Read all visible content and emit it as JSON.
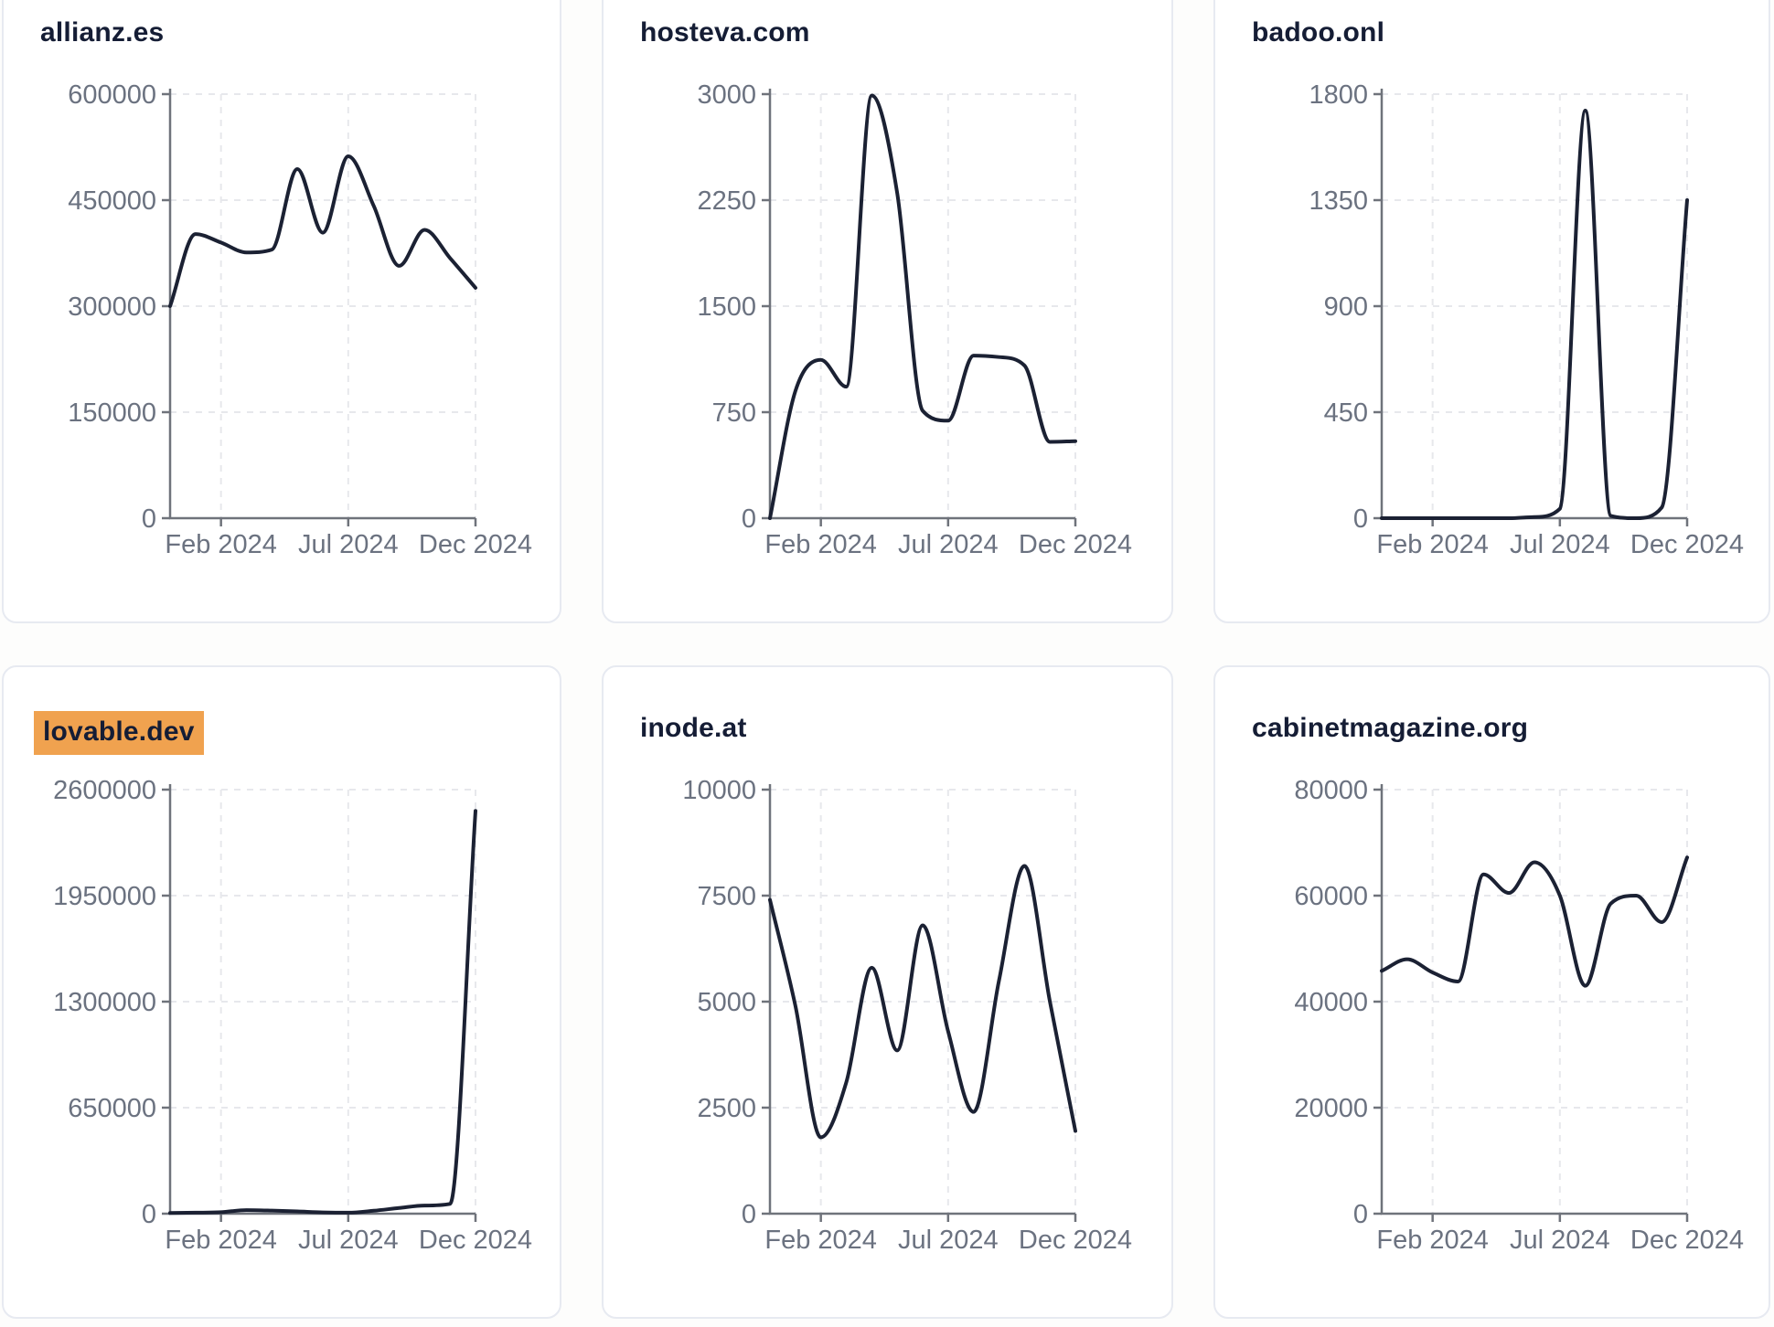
{
  "page": {
    "background": "#fdfdfc",
    "card_background": "#ffffff",
    "card_border_color": "#e7eaf1"
  },
  "styles": {
    "line_color": "#1b2133",
    "axis_color": "#6f737b",
    "grid_color": "#e7e8ec",
    "tick_label_color": "#6b7280",
    "title_color": "#151d35",
    "highlight_color": "#f0a24f"
  },
  "chart_data": [
    {
      "type": "line",
      "title": "allianz.es",
      "highlighted": false,
      "x": [
        "Dec 2023",
        "Jan 2024",
        "Feb 2024",
        "Mar 2024",
        "Apr 2024",
        "May 2024",
        "Jun 2024",
        "Jul 2024",
        "Aug 2024",
        "Sep 2024",
        "Oct 2024",
        "Nov 2024",
        "Dec 2024"
      ],
      "values": [
        300000,
        402000,
        390000,
        376000,
        380000,
        494000,
        404000,
        512000,
        442000,
        357000,
        408000,
        368000,
        326000
      ],
      "ylim": [
        0,
        600000
      ],
      "yticks": [
        0,
        150000,
        300000,
        450000,
        600000
      ],
      "xticks": [
        {
          "index": 2,
          "label": "Feb 2024"
        },
        {
          "index": 7,
          "label": "Jul 2024"
        },
        {
          "index": 12,
          "label": "Dec 2024"
        }
      ],
      "xlabel": "",
      "ylabel": "",
      "grid": true,
      "legend": false
    },
    {
      "type": "line",
      "title": "hosteva.com",
      "highlighted": false,
      "x": [
        "Dec 2023",
        "Jan 2024",
        "Feb 2024",
        "Mar 2024",
        "Apr 2024",
        "May 2024",
        "Jun 2024",
        "Jul 2024",
        "Aug 2024",
        "Sep 2024",
        "Oct 2024",
        "Nov 2024",
        "Dec 2024"
      ],
      "values": [
        0,
        900,
        1120,
        930,
        2990,
        2300,
        760,
        690,
        1150,
        1140,
        1080,
        540,
        545
      ],
      "ylim": [
        0,
        3000
      ],
      "yticks": [
        0,
        750,
        1500,
        2250,
        3000
      ],
      "xticks": [
        {
          "index": 2,
          "label": "Feb 2024"
        },
        {
          "index": 7,
          "label": "Jul 2024"
        },
        {
          "index": 12,
          "label": "Dec 2024"
        }
      ],
      "xlabel": "",
      "ylabel": "",
      "grid": true,
      "legend": false
    },
    {
      "type": "line",
      "title": "badoo.onl",
      "highlighted": false,
      "x": [
        "Dec 2023",
        "Jan 2024",
        "Feb 2024",
        "Mar 2024",
        "Apr 2024",
        "May 2024",
        "Jun 2024",
        "Jul 2024",
        "Aug 2024",
        "Sep 2024",
        "Oct 2024",
        "Nov 2024",
        "Dec 2024"
      ],
      "values": [
        0,
        0,
        0,
        0,
        0,
        0,
        5,
        40,
        1730,
        10,
        0,
        45,
        1350
      ],
      "ylim": [
        0,
        1800
      ],
      "yticks": [
        0,
        450,
        900,
        1350,
        1800
      ],
      "xticks": [
        {
          "index": 2,
          "label": "Feb 2024"
        },
        {
          "index": 7,
          "label": "Jul 2024"
        },
        {
          "index": 12,
          "label": "Dec 2024"
        }
      ],
      "xlabel": "",
      "ylabel": "",
      "grid": true,
      "legend": false
    },
    {
      "type": "line",
      "title": "lovable.dev",
      "highlighted": true,
      "x": [
        "Dec 2023",
        "Jan 2024",
        "Feb 2024",
        "Mar 2024",
        "Apr 2024",
        "May 2024",
        "Jun 2024",
        "Jul 2024",
        "Aug 2024",
        "Sep 2024",
        "Oct 2024",
        "Nov 2024",
        "Dec 2024"
      ],
      "values": [
        4000,
        6000,
        9000,
        22000,
        19000,
        14000,
        8000,
        6000,
        18000,
        35000,
        50000,
        60000,
        2470000
      ],
      "ylim": [
        0,
        2600000
      ],
      "yticks": [
        0,
        650000,
        1300000,
        1950000,
        2600000
      ],
      "xticks": [
        {
          "index": 2,
          "label": "Feb 2024"
        },
        {
          "index": 7,
          "label": "Jul 2024"
        },
        {
          "index": 12,
          "label": "Dec 2024"
        }
      ],
      "xlabel": "",
      "ylabel": "",
      "grid": true,
      "legend": false
    },
    {
      "type": "line",
      "title": "inode.at",
      "highlighted": false,
      "x": [
        "Dec 2023",
        "Jan 2024",
        "Feb 2024",
        "Mar 2024",
        "Apr 2024",
        "May 2024",
        "Jun 2024",
        "Jul 2024",
        "Aug 2024",
        "Sep 2024",
        "Oct 2024",
        "Nov 2024",
        "Dec 2024"
      ],
      "values": [
        7400,
        4900,
        1800,
        3100,
        5800,
        3850,
        6800,
        4300,
        2400,
        5500,
        8200,
        5000,
        1950
      ],
      "ylim": [
        0,
        10000
      ],
      "yticks": [
        0,
        2500,
        5000,
        7500,
        10000
      ],
      "xticks": [
        {
          "index": 2,
          "label": "Feb 2024"
        },
        {
          "index": 7,
          "label": "Jul 2024"
        },
        {
          "index": 12,
          "label": "Dec 2024"
        }
      ],
      "xlabel": "",
      "ylabel": "",
      "grid": true,
      "legend": false
    },
    {
      "type": "line",
      "title": "cabinetmagazine.org",
      "highlighted": false,
      "x": [
        "Dec 2023",
        "Jan 2024",
        "Feb 2024",
        "Mar 2024",
        "Apr 2024",
        "May 2024",
        "Jun 2024",
        "Jul 2024",
        "Aug 2024",
        "Sep 2024",
        "Oct 2024",
        "Nov 2024",
        "Dec 2024"
      ],
      "values": [
        45800,
        48000,
        45500,
        43800,
        64000,
        60500,
        66300,
        60000,
        43000,
        58500,
        60000,
        55000,
        67200
      ],
      "ylim": [
        0,
        80000
      ],
      "yticks": [
        0,
        20000,
        40000,
        60000,
        80000
      ],
      "xticks": [
        {
          "index": 2,
          "label": "Feb 2024"
        },
        {
          "index": 7,
          "label": "Jul 2024"
        },
        {
          "index": 12,
          "label": "Dec 2024"
        }
      ],
      "xlabel": "",
      "ylabel": "",
      "grid": true,
      "legend": false
    }
  ]
}
